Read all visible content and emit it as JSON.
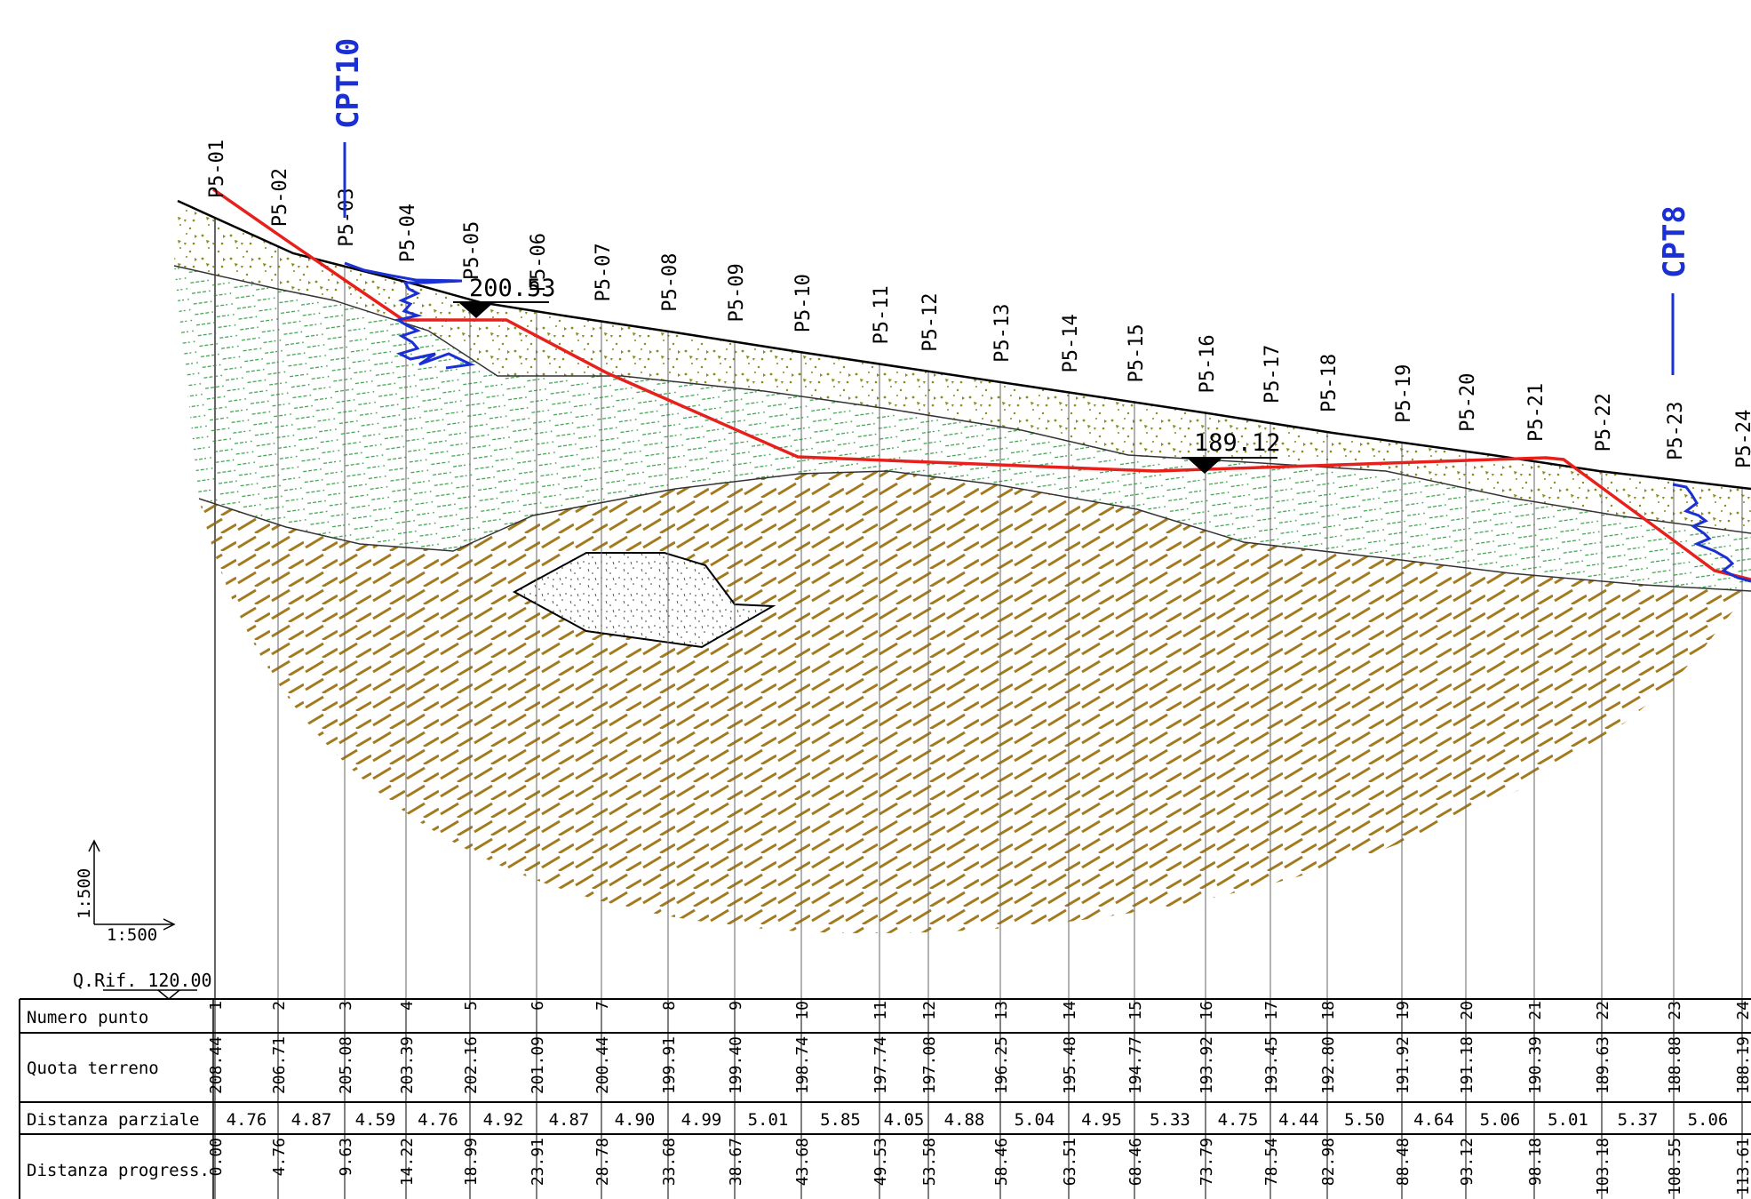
{
  "cpt_left": {
    "label": "CPT10"
  },
  "cpt_right": {
    "label": "CPT8"
  },
  "water_level_left": {
    "value": "200.53"
  },
  "water_level_right": {
    "value": "189.12"
  },
  "scale_vertical": "1:500",
  "scale_horizontal": "1:500",
  "reference": "Q.Rif. 120.00",
  "table": {
    "row_labels": {
      "numero": "Numero punto",
      "quota": "Quota terreno",
      "parziale": "Distanza parziale",
      "progress": "Distanza progress."
    },
    "points": [
      {
        "name": "P5-01",
        "num": "1",
        "quota": "208.44",
        "prog": "0.00"
      },
      {
        "name": "P5-02",
        "num": "2",
        "quota": "206.71",
        "prog": "4.76"
      },
      {
        "name": "P5-03",
        "num": "3",
        "quota": "205.08",
        "prog": "9.63"
      },
      {
        "name": "P5-04",
        "num": "4",
        "quota": "203.39",
        "prog": "14.22"
      },
      {
        "name": "P5-05",
        "num": "5",
        "quota": "202.16",
        "prog": "18.99"
      },
      {
        "name": "P5-06",
        "num": "6",
        "quota": "201.09",
        "prog": "23.91"
      },
      {
        "name": "P5-07",
        "num": "7",
        "quota": "200.44",
        "prog": "28.78"
      },
      {
        "name": "P5-08",
        "num": "8",
        "quota": "199.91",
        "prog": "33.68"
      },
      {
        "name": "P5-09",
        "num": "9",
        "quota": "199.40",
        "prog": "38.67"
      },
      {
        "name": "P5-10",
        "num": "10",
        "quota": "198.74",
        "prog": "43.68"
      },
      {
        "name": "P5-11",
        "num": "11",
        "quota": "197.74",
        "prog": "49.53"
      },
      {
        "name": "P5-12",
        "num": "12",
        "quota": "197.08",
        "prog": "53.58"
      },
      {
        "name": "P5-13",
        "num": "13",
        "quota": "196.25",
        "prog": "58.46"
      },
      {
        "name": "P5-14",
        "num": "14",
        "quota": "195.48",
        "prog": "63.51"
      },
      {
        "name": "P5-15",
        "num": "15",
        "quota": "194.77",
        "prog": "68.46"
      },
      {
        "name": "P5-16",
        "num": "16",
        "quota": "193.92",
        "prog": "73.79"
      },
      {
        "name": "P5-17",
        "num": "17",
        "quota": "193.45",
        "prog": "78.54"
      },
      {
        "name": "P5-18",
        "num": "18",
        "quota": "192.80",
        "prog": "82.98"
      },
      {
        "name": "P5-19",
        "num": "19",
        "quota": "191.92",
        "prog": "88.48"
      },
      {
        "name": "P5-20",
        "num": "20",
        "quota": "191.18",
        "prog": "93.12"
      },
      {
        "name": "P5-21",
        "num": "21",
        "quota": "190.39",
        "prog": "98.18"
      },
      {
        "name": "P5-22",
        "num": "22",
        "quota": "189.63",
        "prog": "103.18"
      },
      {
        "name": "P5-23",
        "num": "23",
        "quota": "188.88",
        "prog": "108.55"
      },
      {
        "name": "P5-24",
        "num": "24",
        "quota": "188.19",
        "prog": "113.61"
      }
    ],
    "parziali": [
      "4.76",
      "4.87",
      "4.59",
      "4.76",
      "4.92",
      "4.87",
      "4.90",
      "4.99",
      "5.01",
      "5.85",
      "4.05",
      "4.88",
      "5.04",
      "4.95",
      "5.33",
      "4.75",
      "4.44",
      "5.50",
      "4.64",
      "5.06",
      "5.01",
      "5.37",
      "5.06"
    ]
  },
  "colors": {
    "slip_surface": "#e8201c",
    "cpt": "#1a2fd4",
    "sand_dots": "#8c8a1a",
    "green_hatch": "#3aa04a",
    "brown_hatch": "#a37a1e"
  }
}
